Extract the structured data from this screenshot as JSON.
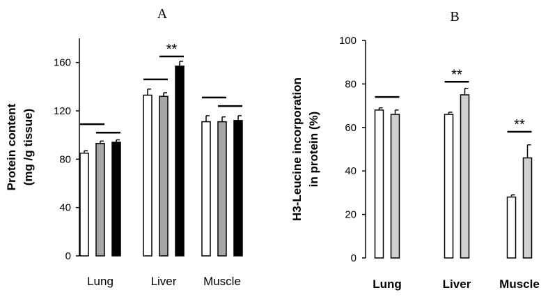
{
  "chart_data": [
    {
      "panel": "A",
      "type": "bar",
      "title": "A",
      "ylabel_lines": [
        "Protein content",
        "(mg /g tissue)"
      ],
      "categories": [
        "Lung",
        "Liver",
        "Muscle"
      ],
      "ylim": [
        0,
        180
      ],
      "yticks": [
        0,
        40,
        80,
        120,
        160
      ],
      "grid": false,
      "legend": "none",
      "series": [
        {
          "fill": "#ffffff",
          "values": [
            85,
            133,
            111
          ],
          "errors": [
            2,
            5,
            5
          ]
        },
        {
          "fill": "#a6a6a6",
          "values": [
            93,
            132,
            111
          ],
          "errors": [
            2,
            3,
            4
          ]
        },
        {
          "fill": "#000000",
          "values": [
            94,
            157,
            112
          ],
          "errors": [
            2,
            4,
            4
          ]
        }
      ],
      "annotations": [
        {
          "category": "Lung",
          "between": [
            0,
            1
          ],
          "value": 109,
          "label": ""
        },
        {
          "category": "Lung",
          "between": [
            1,
            2
          ],
          "value": 102,
          "label": ""
        },
        {
          "category": "Liver",
          "between": [
            0,
            1
          ],
          "value": 146,
          "label": ""
        },
        {
          "category": "Liver",
          "between": [
            1,
            2
          ],
          "value": 165,
          "label": "**"
        },
        {
          "category": "Muscle",
          "between": [
            0,
            1
          ],
          "value": 131,
          "label": ""
        },
        {
          "category": "Muscle",
          "between": [
            1,
            2
          ],
          "value": 124,
          "label": ""
        }
      ]
    },
    {
      "panel": "B",
      "type": "bar",
      "title": "B",
      "ylabel_lines": [
        "H3-Leucine incorporation",
        "in protein (%)"
      ],
      "categories": [
        "Lung",
        "Liver",
        "Muscle"
      ],
      "ylim": [
        0,
        100
      ],
      "yticks": [
        0,
        20,
        40,
        60,
        80,
        100
      ],
      "grid": false,
      "legend": "none",
      "series": [
        {
          "fill": "#ffffff",
          "values": [
            68,
            66,
            28
          ],
          "errors": [
            1,
            1,
            1
          ]
        },
        {
          "fill": "#d0d0d0",
          "values": [
            66,
            75,
            46
          ],
          "errors": [
            2,
            3,
            6
          ]
        }
      ],
      "annotations": [
        {
          "category": "Lung",
          "between": [
            0,
            1
          ],
          "value": 74,
          "label": ""
        },
        {
          "category": "Liver",
          "between": [
            0,
            1
          ],
          "value": 81,
          "label": "**"
        },
        {
          "category": "Muscle",
          "between": [
            0,
            1
          ],
          "value": 58,
          "label": "**"
        }
      ]
    }
  ]
}
